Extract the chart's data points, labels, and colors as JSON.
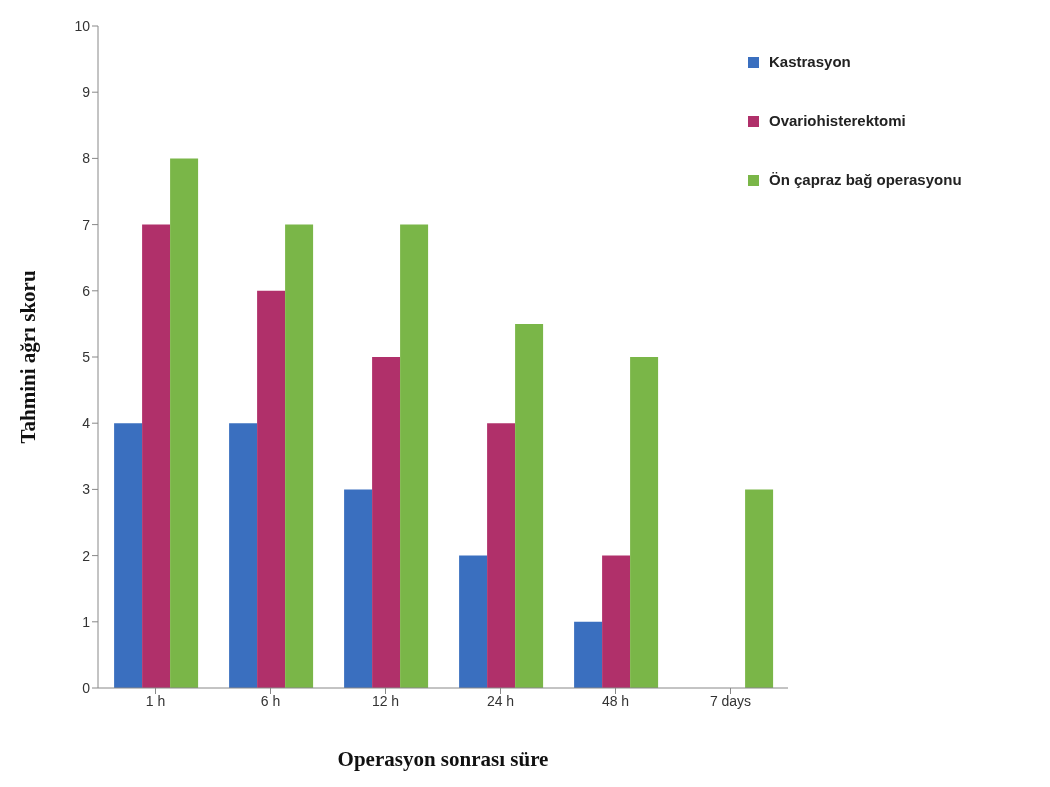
{
  "chart_data": {
    "type": "bar",
    "xlabel": "Operasyon sonrası süre",
    "ylabel": "Tahmini ağrı skoru",
    "categories": [
      "1 h",
      "6 h",
      "12 h",
      "24 h",
      "48 h",
      "7 days"
    ],
    "series": [
      {
        "name": "Kastrasyon",
        "color": "#3a6fbf",
        "values": [
          4,
          4,
          3,
          2,
          1,
          null
        ]
      },
      {
        "name": "Ovariohisterektomi",
        "color": "#b0306a",
        "values": [
          7,
          6,
          5,
          4,
          2,
          null
        ]
      },
      {
        "name": "Ön çapraz bağ operasyonu",
        "color": "#7ab648",
        "values": [
          8,
          7,
          7,
          5.5,
          5,
          3
        ]
      }
    ],
    "ylim": [
      0,
      10
    ],
    "yticks": [
      0,
      1,
      2,
      3,
      4,
      5,
      6,
      7,
      8,
      9,
      10
    ],
    "grid": false,
    "legend": "top right"
  }
}
